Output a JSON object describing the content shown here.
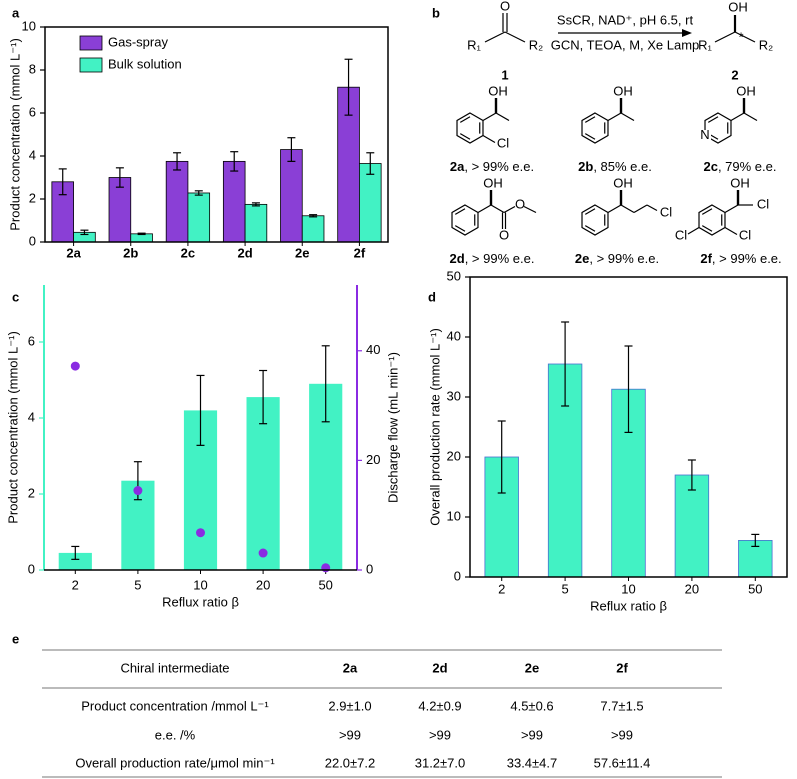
{
  "panel_labels": [
    "a",
    "b",
    "c",
    "d",
    "e"
  ],
  "chart_data": [
    {
      "type": "bar",
      "ylabel": "Product concentration (mmol L⁻¹)",
      "categories": [
        "2a",
        "2b",
        "2c",
        "2d",
        "2e",
        "2f"
      ],
      "series": [
        {
          "name": "Gas-spray",
          "color": "#8a3fd6",
          "values": [
            2.8,
            3.0,
            3.75,
            3.75,
            4.3,
            7.2
          ],
          "errors": [
            0.6,
            0.45,
            0.4,
            0.45,
            0.55,
            1.3
          ]
        },
        {
          "name": "Bulk solution",
          "color": "#42f2c4",
          "values": [
            0.45,
            0.38,
            2.28,
            1.75,
            1.22,
            3.65
          ],
          "errors": [
            0.1,
            0.03,
            0.1,
            0.07,
            0.05,
            0.5
          ]
        }
      ],
      "ylim": [
        0,
        10
      ],
      "yticks": [
        0,
        2,
        4,
        6,
        8,
        10
      ],
      "legend": "upper left",
      "frame": "box",
      "bar_edge": "#000000"
    },
    {
      "type": "bar",
      "xlabel": "Reflux ratio β",
      "ylabel": "Product concentration (mmol L⁻¹)",
      "y2label": "Discharge flow (mL min⁻¹)",
      "categories": [
        "2",
        "5",
        "10",
        "20",
        "50"
      ],
      "series": [
        {
          "color": "#42f2c4",
          "values": [
            0.45,
            2.35,
            4.2,
            4.55,
            4.9
          ],
          "errors": [
            0.17,
            0.5,
            0.92,
            0.7,
            1.0
          ]
        },
        {
          "type": "scatter",
          "axis": "y2",
          "color": "#8a2be2",
          "values": [
            37.2,
            14.5,
            6.8,
            3.1,
            0.4
          ]
        }
      ],
      "ylim": [
        0,
        7.5
      ],
      "yticks": [
        0,
        2,
        4,
        6
      ],
      "y2lim": [
        0,
        52
      ],
      "y2ticks": [
        0,
        20,
        40
      ],
      "frame": "open",
      "ycolor": "#42f2c4",
      "y2color": "#8a2be2"
    },
    {
      "type": "bar",
      "xlabel": "Reflux ratio β",
      "ylabel": "Overall production rate (mmol L⁻¹)",
      "categories": [
        "2",
        "5",
        "10",
        "20",
        "50"
      ],
      "series": [
        {
          "color": "#42f2c4",
          "values": [
            20,
            35.5,
            31.3,
            17,
            6.1
          ],
          "errors": [
            6,
            7,
            7.2,
            2.5,
            1
          ]
        }
      ],
      "ylim": [
        0,
        50
      ],
      "yticks": [
        0,
        10,
        20,
        30,
        40,
        50
      ],
      "frame": "box",
      "bar_edge": "#4a6fd0"
    }
  ],
  "scheme": {
    "conditions": [
      "SsCR, NAD⁺, pH 6.5, rt",
      "GCN, TEOA, M, Xe Lamp"
    ],
    "reactant": {
      "label": "1",
      "atoms": [
        "O",
        "R₁",
        "R₂"
      ]
    },
    "product": {
      "label": "2",
      "atoms": [
        "OH",
        "R₁",
        "*",
        "R₂"
      ]
    },
    "compounds": [
      {
        "id": "2a",
        "ee": ", > 99% e.e.",
        "atoms": [
          "OH",
          "Cl"
        ]
      },
      {
        "id": "2b",
        "ee": ", 85% e.e.",
        "atoms": [
          "OH"
        ]
      },
      {
        "id": "2c",
        "ee": ", 79% e.e.",
        "atoms": [
          "OH",
          "N"
        ]
      },
      {
        "id": "2d",
        "ee": ", > 99% e.e.",
        "atoms": [
          "OH",
          "O",
          "O"
        ]
      },
      {
        "id": "2e",
        "ee": ", > 99% e.e.",
        "atoms": [
          "OH",
          "Cl"
        ]
      },
      {
        "id": "2f",
        "ee": ", > 99% e.e.",
        "atoms": [
          "OH",
          "Cl",
          "Cl",
          "Cl"
        ]
      }
    ]
  },
  "table": {
    "header": [
      "Chiral intermediate",
      "2a",
      "2d",
      "2e",
      "2f"
    ],
    "rows": [
      [
        "Product concentration /mmol L⁻¹",
        "2.9±1.0",
        "4.2±0.9",
        "4.5±0.6",
        "7.7±1.5"
      ],
      [
        "e.e. /%",
        ">99",
        ">99",
        ">99",
        ">99"
      ],
      [
        "Overall production rate/μmol min⁻¹",
        "22.0±7.2",
        "31.2±7.0",
        "33.4±4.7",
        "57.6±11.4"
      ]
    ]
  }
}
